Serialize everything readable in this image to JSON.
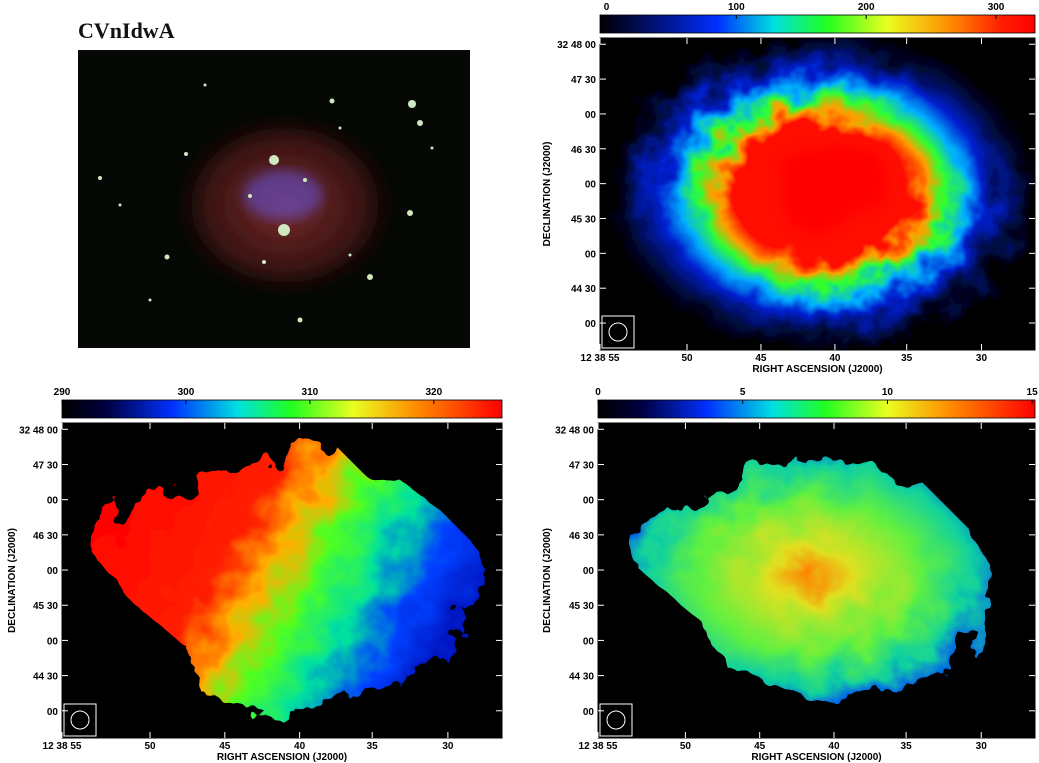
{
  "title": "CVnIdwA",
  "panels": [
    {
      "colorbar": {
        "lim": [
          -5,
          330
        ],
        "ticks": [
          0,
          100,
          200,
          300
        ]
      },
      "yticks": [
        "32 48 00",
        "47 30",
        "00",
        "46 30",
        "00",
        "45 30",
        "00",
        "44 30",
        "00"
      ],
      "xticks": [
        "12 38 55",
        "50",
        "45",
        "40",
        "35",
        "30"
      ],
      "xlabel": "RIGHT ASCENSION (J2000)",
      "ylabel": "DECLINATION (J2000)"
    },
    {
      "colorbar": {
        "lim": [
          290,
          325.5
        ],
        "ticks": [
          290,
          300,
          310,
          320
        ]
      },
      "yticks": [
        "32 48 00",
        "47 30",
        "00",
        "46 30",
        "00",
        "45 30",
        "00",
        "44 30",
        "00"
      ],
      "xticks": [
        "12 38 55",
        "50",
        "45",
        "40",
        "35",
        "30"
      ],
      "xlabel": "RIGHT ASCENSION (J2000)",
      "ylabel": "DECLINATION (J2000)"
    },
    {
      "colorbar": {
        "lim": [
          0,
          15.1
        ],
        "ticks": [
          0,
          5,
          10,
          15
        ]
      },
      "yticks": [
        "32 48 00",
        "47 30",
        "00",
        "46 30",
        "00",
        "45 30",
        "00",
        "44 30",
        "00"
      ],
      "xticks": [
        "12 38 55",
        "50",
        "45",
        "40",
        "35",
        "30"
      ],
      "xlabel": "RIGHT ASCENSION (J2000)",
      "ylabel": "DECLINATION (J2000)"
    }
  ]
}
